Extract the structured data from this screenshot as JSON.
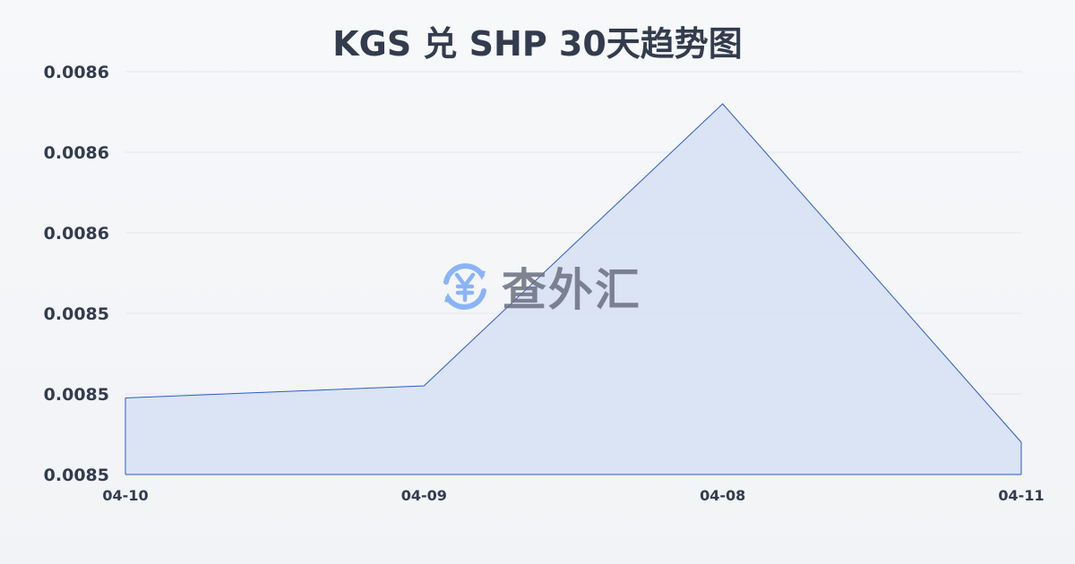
{
  "chart_data": {
    "type": "area",
    "title": "KGS 兑 SHP 30天趋势图",
    "xlabel": "",
    "ylabel": "",
    "categories": [
      "04-10",
      "04-09",
      "04-08",
      "04-11"
    ],
    "values": [
      0.008519,
      0.008522,
      0.008592,
      0.008508
    ],
    "ylim": [
      0.0085,
      0.0086
    ],
    "yticks": [
      0.0085,
      0.00852,
      0.00854,
      0.00856,
      0.00858,
      0.0086
    ],
    "ytick_labels": [
      "0.0085",
      "0.0085",
      "0.0085",
      "0.0086",
      "0.0086",
      "0.0086"
    ],
    "grid": true,
    "line_color": "#2b5cc8",
    "fill_color": "#d6e0f5"
  },
  "watermark": {
    "text": "查外汇",
    "icon": "yen-exchange-icon",
    "icon_color": "#8ab4f8"
  }
}
